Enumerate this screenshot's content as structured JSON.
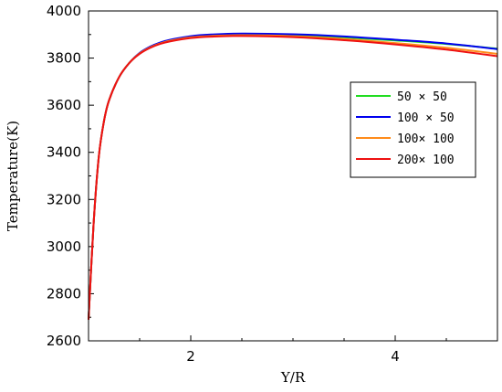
{
  "chart_data": {
    "type": "line",
    "xlabel": "Y/R",
    "ylabel": "Temperature(K)",
    "xlim": [
      1,
      5
    ],
    "ylim": [
      2600,
      4000
    ],
    "x_ticks": [
      2,
      4
    ],
    "y_ticks": [
      2600,
      2800,
      3000,
      3200,
      3400,
      3600,
      3800,
      4000
    ],
    "legend_position": "upper-right",
    "series": [
      {
        "name": "50 × 50",
        "color": "#22dd22",
        "x": [
          1.0,
          1.05,
          1.1,
          1.15,
          1.2,
          1.3,
          1.4,
          1.5,
          1.6,
          1.7,
          1.8,
          2.0,
          2.2,
          2.5,
          3.0,
          3.5,
          4.0,
          4.5,
          5.0
        ],
        "y": [
          2690,
          3100,
          3380,
          3530,
          3620,
          3720,
          3780,
          3820,
          3845,
          3862,
          3874,
          3890,
          3897,
          3901,
          3898,
          3888,
          3875,
          3860,
          3840
        ]
      },
      {
        "name": "100 × 50",
        "color": "#0000ee",
        "x": [
          1.0,
          1.05,
          1.1,
          1.15,
          1.2,
          1.3,
          1.4,
          1.5,
          1.6,
          1.7,
          1.8,
          2.0,
          2.2,
          2.5,
          3.0,
          3.5,
          4.0,
          4.5,
          5.0
        ],
        "y": [
          2690,
          3100,
          3380,
          3530,
          3620,
          3720,
          3780,
          3822,
          3848,
          3866,
          3878,
          3893,
          3900,
          3904,
          3901,
          3892,
          3878,
          3862,
          3838
        ]
      },
      {
        "name": "100× 100",
        "color": "#ff8c1a",
        "x": [
          1.0,
          1.05,
          1.1,
          1.15,
          1.2,
          1.3,
          1.4,
          1.5,
          1.6,
          1.7,
          1.8,
          2.0,
          2.2,
          2.5,
          3.0,
          3.5,
          4.0,
          4.5,
          5.0
        ],
        "y": [
          2690,
          3100,
          3380,
          3530,
          3620,
          3720,
          3780,
          3820,
          3845,
          3862,
          3874,
          3888,
          3894,
          3897,
          3893,
          3881,
          3864,
          3844,
          3818
        ]
      },
      {
        "name": "200× 100",
        "color": "#ee1111",
        "x": [
          1.0,
          1.05,
          1.1,
          1.15,
          1.2,
          1.3,
          1.4,
          1.5,
          1.6,
          1.7,
          1.8,
          2.0,
          2.2,
          2.5,
          3.0,
          3.5,
          4.0,
          4.5,
          5.0
        ],
        "y": [
          2690,
          3100,
          3380,
          3530,
          3620,
          3720,
          3780,
          3818,
          3843,
          3860,
          3871,
          3885,
          3891,
          3894,
          3889,
          3876,
          3858,
          3836,
          3808
        ]
      }
    ]
  }
}
